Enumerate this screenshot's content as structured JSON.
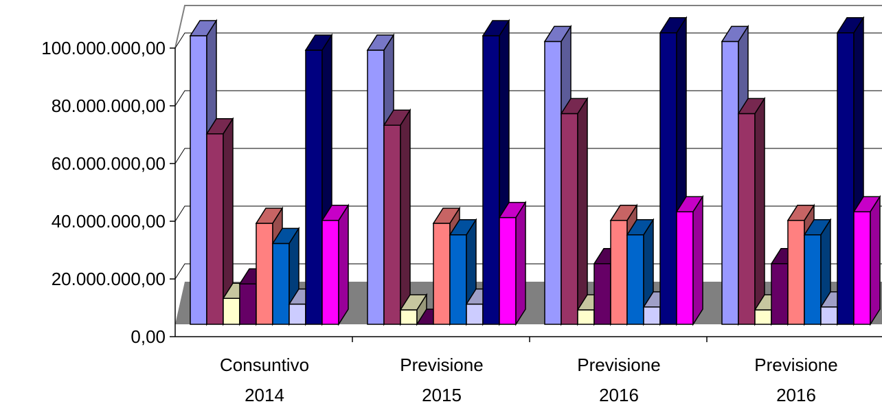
{
  "chart_data": {
    "type": "bar",
    "style": "3d-clustered-column",
    "title": "",
    "xlabel": "",
    "ylabel": "",
    "ylim": [
      0,
      100000000
    ],
    "ytick_values": [
      0,
      20000000,
      40000000,
      60000000,
      80000000,
      100000000
    ],
    "ytick_labels": [
      "0,00",
      "20.000.000,00",
      "40.000.000,00",
      "60.000.000,00",
      "80.000.000,00",
      "100.000.000,00"
    ],
    "categories": [
      [
        "Consuntivo",
        "2014"
      ],
      [
        "Previsione",
        "2015"
      ],
      [
        "Previsione",
        "2016"
      ],
      [
        "Previsione",
        "2016"
      ]
    ],
    "grid": true,
    "legend": "none",
    "floor_color": "#808080",
    "series": [
      {
        "color": "#9999ff",
        "values": [
          100000000,
          95000000,
          98000000,
          98000000
        ]
      },
      {
        "color": "#993366",
        "values": [
          66000000,
          69000000,
          73000000,
          73000000
        ]
      },
      {
        "color": "#ffffcc",
        "values": [
          9000000,
          5000000,
          5000000,
          5000000
        ]
      },
      {
        "color": "#660066",
        "values": [
          14000000,
          0,
          21000000,
          21000000
        ]
      },
      {
        "color": "#ff8080",
        "values": [
          35000000,
          35000000,
          36000000,
          36000000
        ]
      },
      {
        "color": "#0066cc",
        "values": [
          28000000,
          31000000,
          31000000,
          31000000
        ]
      },
      {
        "color": "#ccccff",
        "values": [
          7000000,
          7000000,
          6000000,
          6000000
        ]
      },
      {
        "color": "#000080",
        "values": [
          95000000,
          100000000,
          101000000,
          101000000
        ]
      },
      {
        "color": "#ff00ff",
        "values": [
          36000000,
          37000000,
          39000000,
          39000000
        ]
      }
    ]
  }
}
